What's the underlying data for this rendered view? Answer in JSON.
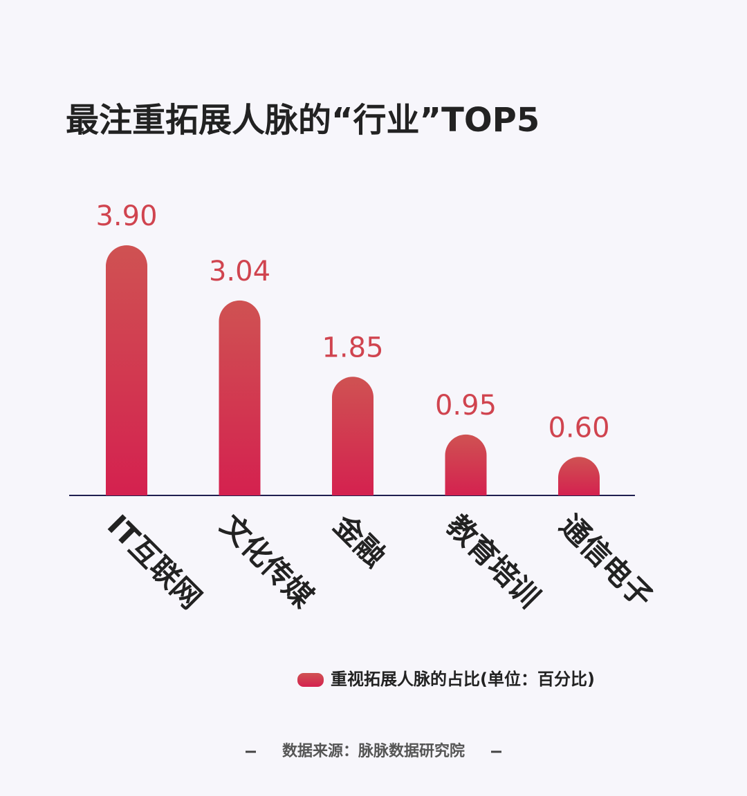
{
  "chart_data": {
    "type": "bar",
    "title": "最注重拓展人脉的“行业”TOP5",
    "categories": [
      "IT互联网",
      "文化传媒",
      "金融",
      "教育培训",
      "通信电子"
    ],
    "series": [
      {
        "name": "重视拓展人脉的占比(单位：百分比)",
        "color": "#d2344f",
        "values": [
          3.9,
          3.04,
          1.85,
          0.95,
          0.6
        ],
        "value_labels": [
          "3.90",
          "3.04",
          "1.85",
          "0.95",
          "0.60"
        ]
      }
    ],
    "source": "数据来源：脉脉数据研究院"
  }
}
